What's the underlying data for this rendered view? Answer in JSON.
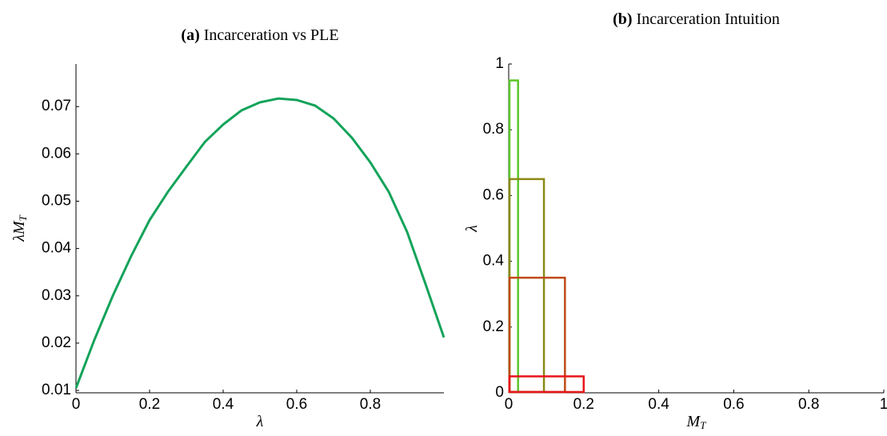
{
  "chart_data": [
    {
      "type": "line",
      "label": "(a)",
      "title": "Incarceration vs PLE",
      "xlabel": "λ",
      "ylabel": "λM",
      "ylabel_sub": "T",
      "x": [
        0,
        0.05,
        0.1,
        0.15,
        0.2,
        0.25,
        0.3,
        0.35,
        0.4,
        0.45,
        0.5,
        0.55,
        0.6,
        0.65,
        0.7,
        0.75,
        0.8,
        0.85,
        0.9,
        0.95,
        1.0
      ],
      "values": [
        0.0105,
        0.0207,
        0.03,
        0.0384,
        0.046,
        0.052,
        0.0573,
        0.0625,
        0.0662,
        0.0692,
        0.0709,
        0.0717,
        0.0714,
        0.0702,
        0.0675,
        0.0634,
        0.0582,
        0.052,
        0.0435,
        0.0325,
        0.0212
      ],
      "color": "#13a35a",
      "xlim": [
        0,
        1
      ],
      "xticks": [
        0,
        0.2,
        0.4,
        0.6,
        0.8
      ],
      "ylim": [
        0.0095,
        0.079
      ],
      "yticks": [
        0.01,
        0.02,
        0.03,
        0.04,
        0.05,
        0.06,
        0.07
      ]
    },
    {
      "type": "rectangles",
      "label": "(b)",
      "title": "Incarceration Intuition",
      "xlabel": "M",
      "xlabel_sub": "T",
      "ylabel": "λ",
      "x": [
        0.025,
        0.094,
        0.15,
        0.2
      ],
      "values": [
        0.95,
        0.65,
        0.35,
        0.05
      ],
      "colors": [
        "#5cc62a",
        "#8a8a17",
        "#c04a16",
        "#e8141a"
      ],
      "xlim": [
        0,
        1
      ],
      "xticks": [
        0,
        0.2,
        0.4,
        0.6,
        0.8,
        1
      ],
      "ylim": [
        0,
        1
      ],
      "yticks": [
        0,
        0.2,
        0.4,
        0.6,
        0.8,
        1
      ]
    }
  ]
}
